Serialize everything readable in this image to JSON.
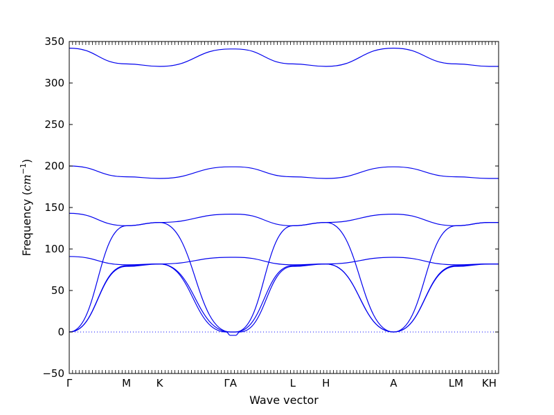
{
  "chart_data": {
    "type": "line",
    "title": "",
    "xlabel": "Wave vector",
    "ylabel_text": "Frequency (",
    "ylabel_math": "cm",
    "ylabel_exp": "−1",
    "ylabel_close": ")",
    "ylim": [
      -50,
      350
    ],
    "yticks": [
      -50,
      0,
      50,
      100,
      150,
      200,
      250,
      300,
      350
    ],
    "xlim": [
      0,
      4.13
    ],
    "high_symmetry_points": [
      {
        "label": "Γ",
        "x": 0.0
      },
      {
        "label": "M",
        "x": 0.55
      },
      {
        "label": "K",
        "x": 0.87
      },
      {
        "label": "ΓA",
        "x": 1.55
      },
      {
        "label": "L",
        "x": 2.15
      },
      {
        "label": "H",
        "x": 2.47
      },
      {
        "label": "A",
        "x": 3.12
      },
      {
        "label": "LM",
        "x": 3.72
      },
      {
        "label": "KH",
        "x": 4.04
      }
    ],
    "zero_line": 0,
    "line_color": "#0000ee",
    "zero_line_color": "#0000ff",
    "series": [
      {
        "x": [
          0,
          0.55,
          0.87,
          1.55,
          1.6,
          2.15,
          2.47,
          3.12,
          3.72,
          4.04,
          4.13
        ],
        "values": [
          342,
          323,
          320,
          341,
          341,
          323,
          320,
          342,
          323,
          320,
          320
        ]
      },
      {
        "x": [
          0,
          0.55,
          0.87,
          1.55,
          1.6,
          2.15,
          2.47,
          3.12,
          3.72,
          4.04,
          4.13
        ],
        "values": [
          200,
          187,
          185,
          199,
          199,
          187,
          185,
          199,
          187,
          185,
          185
        ]
      },
      {
        "x": [
          0,
          0.55,
          0.87,
          1.55,
          1.6,
          2.15,
          2.47,
          3.12,
          3.72,
          4.04,
          4.13
        ],
        "values": [
          143,
          128,
          132,
          142,
          142,
          128,
          132,
          142,
          128,
          132,
          132
        ]
      },
      {
        "x": [
          0,
          0.55,
          0.87,
          1.55,
          1.6,
          2.15,
          2.47,
          3.12,
          3.72,
          4.04,
          4.13
        ],
        "values": [
          0,
          128,
          132,
          0,
          0,
          128,
          132,
          0,
          128,
          132,
          132
        ]
      },
      {
        "x": [
          0,
          0.55,
          0.87,
          1.55,
          1.6,
          2.15,
          2.47,
          3.12,
          3.72,
          4.04,
          4.13
        ],
        "values": [
          91,
          81,
          82,
          90,
          90,
          81,
          82,
          90,
          81,
          82,
          82
        ]
      },
      {
        "x": [
          0,
          0.55,
          0.87,
          1.55,
          1.6,
          2.15,
          2.47,
          3.12,
          3.72,
          4.04,
          4.13
        ],
        "values": [
          0,
          80,
          82,
          0,
          0,
          80,
          82,
          0,
          80,
          82,
          82
        ]
      },
      {
        "x": [
          0,
          0.55,
          0.87,
          1.51,
          1.55,
          1.6,
          1.64,
          2.15,
          2.47,
          3.12,
          3.72,
          4.04,
          4.13
        ],
        "values": [
          0,
          79,
          82,
          0,
          -4,
          -4,
          0,
          79,
          82,
          0,
          79,
          82,
          82
        ]
      }
    ]
  }
}
